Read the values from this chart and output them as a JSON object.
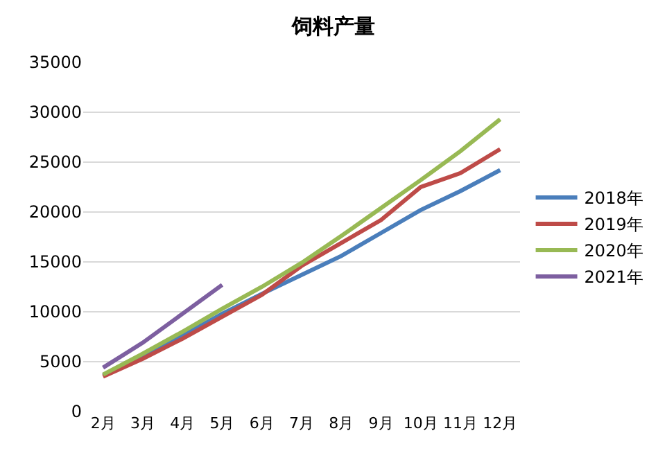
{
  "chart_data": {
    "type": "line",
    "title": "饲料产量",
    "categories": [
      "2月",
      "3月",
      "4月",
      "5月",
      "6月",
      "7月",
      "8月",
      "9月",
      "10月",
      "11月",
      "12月"
    ],
    "series": [
      {
        "name": "2018年",
        "color": "#4a7ebb",
        "values": [
          3600,
          5500,
          7600,
          9800,
          11800,
          13700,
          15600,
          17900,
          20200,
          22100,
          24200
        ]
      },
      {
        "name": "2019年",
        "color": "#be4b48",
        "values": [
          3500,
          5300,
          7300,
          9500,
          11700,
          14600,
          16900,
          19200,
          22500,
          23900,
          26300
        ]
      },
      {
        "name": "2020年",
        "color": "#98b954",
        "values": [
          3700,
          5800,
          8000,
          10300,
          12500,
          14900,
          17600,
          20400,
          23200,
          26100,
          29300
        ]
      },
      {
        "name": "2021年",
        "color": "#7d5fa0",
        "values": [
          4400,
          6900,
          9800,
          12700,
          null,
          null,
          null,
          null,
          null,
          null,
          null
        ]
      }
    ],
    "ylim": [
      0,
      35000
    ],
    "yticks": [
      0,
      5000,
      10000,
      15000,
      20000,
      25000,
      30000,
      35000
    ],
    "grid": "y",
    "legend": "right",
    "marker": "none",
    "line_style": "solid"
  }
}
